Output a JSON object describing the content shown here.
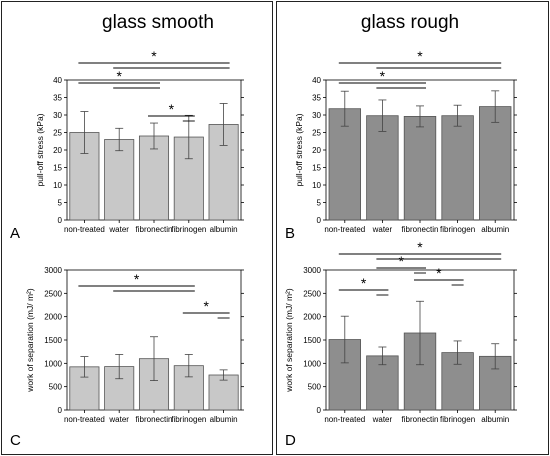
{
  "columns": [
    {
      "title": "glass smooth"
    },
    {
      "title": "glass rough"
    }
  ],
  "chart_data": [
    {
      "type": "bar",
      "panel_label": "A",
      "categories": [
        "non-treated",
        "water",
        "fibronectin",
        "fibrinogen",
        "albumin"
      ],
      "values": [
        25,
        23,
        24,
        23.7,
        27.3
      ],
      "errors": [
        6,
        3.2,
        3.7,
        6.2,
        6
      ],
      "ylabel": "pull-off stress (kPa)",
      "ylim": [
        0,
        40
      ],
      "yticks": [
        0,
        5,
        10,
        15,
        20,
        25,
        30,
        35,
        40
      ],
      "bar_color": "#c8c8c8",
      "significance": [
        {
          "bars": [
            0,
            4
          ],
          "label": "*"
        },
        {
          "bars": [
            0,
            2
          ],
          "label": "*"
        },
        {
          "bars": [
            2,
            3
          ],
          "label": "*"
        }
      ]
    },
    {
      "type": "bar",
      "panel_label": "B",
      "categories": [
        "non-treated",
        "water",
        "fibronectin",
        "fibrinogen",
        "albumin"
      ],
      "values": [
        31.8,
        29.8,
        29.6,
        29.8,
        32.4
      ],
      "errors": [
        5,
        4.5,
        3,
        3,
        4.5
      ],
      "ylabel": "pull-off stress (kPa)",
      "ylim": [
        0,
        40
      ],
      "yticks": [
        0,
        5,
        10,
        15,
        20,
        25,
        30,
        35,
        40
      ],
      "bar_color": "#8e8e8e",
      "significance": [
        {
          "bars": [
            0,
            4
          ],
          "label": "*"
        },
        {
          "bars": [
            0,
            2
          ],
          "label": "*"
        }
      ]
    },
    {
      "type": "bar",
      "panel_label": "C",
      "categories": [
        "non-treated",
        "water",
        "fibronectin",
        "fibrinogen",
        "albumin"
      ],
      "values": [
        925,
        930,
        1100,
        950,
        750
      ],
      "errors": [
        220,
        260,
        470,
        240,
        110
      ],
      "ylabel": "work of separation (mJ/ m²)",
      "ylim": [
        0,
        3000
      ],
      "yticks": [
        0,
        500,
        1000,
        1500,
        2000,
        2500,
        3000
      ],
      "bar_color": "#c8c8c8",
      "significance": [
        {
          "bars": [
            0,
            3
          ],
          "label": "*"
        },
        {
          "bars": [
            3,
            4
          ],
          "label": "*"
        }
      ]
    },
    {
      "type": "bar",
      "panel_label": "D",
      "categories": [
        "non-treated",
        "water",
        "fibronectin",
        "fibrinogen",
        "albumin"
      ],
      "values": [
        1510,
        1160,
        1650,
        1230,
        1150
      ],
      "errors": [
        500,
        190,
        680,
        250,
        270
      ],
      "ylabel": "work of separation (mJ/ m²)",
      "ylim": [
        0,
        3000
      ],
      "yticks": [
        0,
        500,
        1000,
        1500,
        2000,
        2500,
        3000
      ],
      "bar_color": "#8e8e8e",
      "significance": [
        {
          "bars": [
            0,
            4
          ],
          "label": "*"
        },
        {
          "bars": [
            1,
            2
          ],
          "label": "*"
        },
        {
          "bars": [
            0,
            1
          ],
          "label": "*"
        },
        {
          "bars": [
            2,
            3
          ],
          "label": "*"
        }
      ]
    }
  ]
}
